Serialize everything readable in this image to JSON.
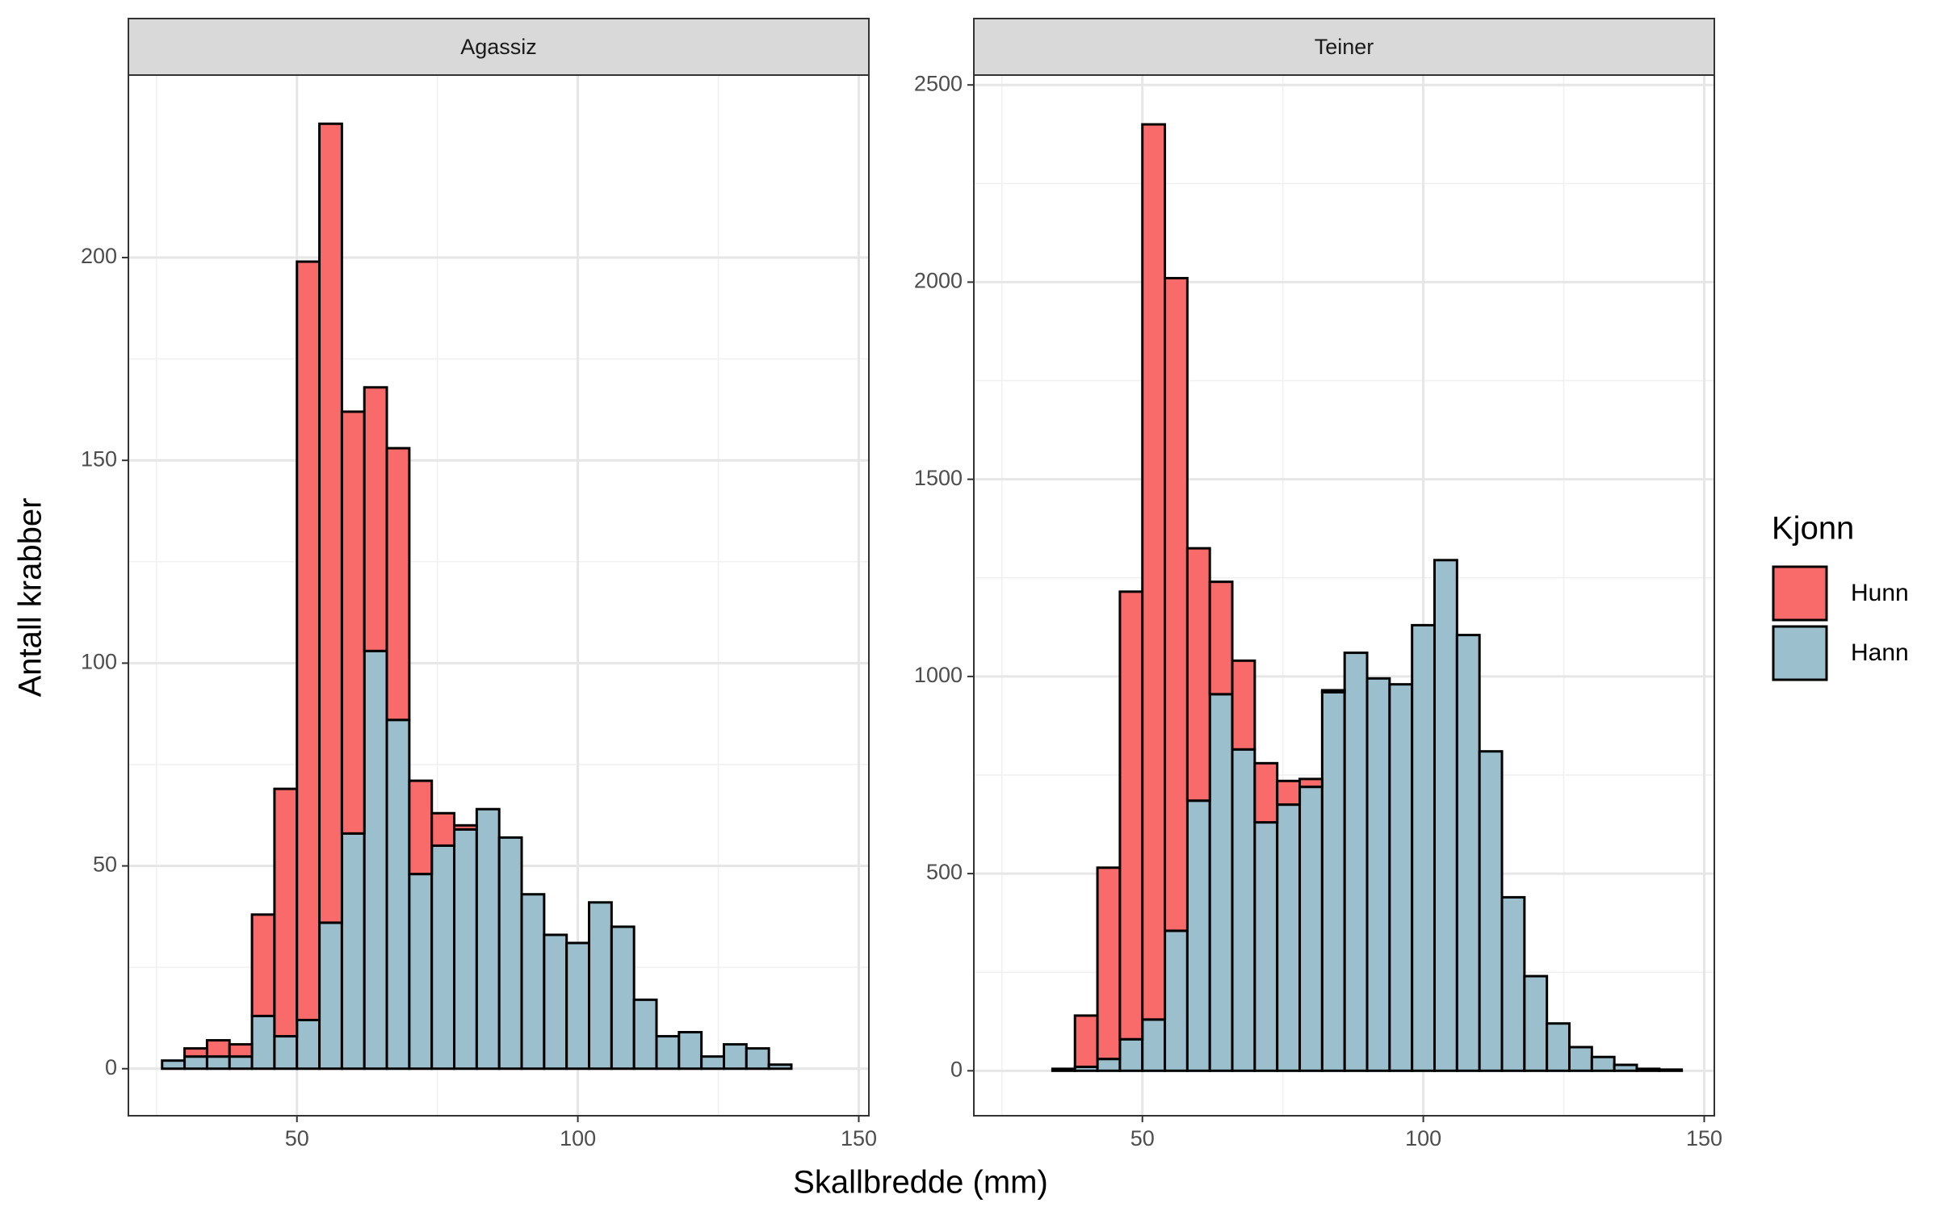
{
  "xlabel": "Skallbredde (mm)",
  "ylabel": "Antall krabber",
  "legend_title": "Kjonn",
  "chart_data": [
    {
      "type": "histogram",
      "title": "Agassiz",
      "bins": [
        26,
        30,
        34,
        38,
        42,
        46,
        50,
        54,
        58,
        62,
        66,
        70,
        74,
        78,
        82,
        86,
        90,
        94,
        98,
        102,
        106,
        110,
        114,
        118,
        122,
        126,
        130,
        134,
        138,
        142,
        146
      ],
      "series": [
        {
          "name": "Hunn",
          "color": "#f96b6b",
          "values": [
            0,
            2,
            4,
            3,
            25,
            61,
            187,
            197,
            104,
            65,
            67,
            23,
            8,
            1,
            0,
            0,
            0,
            0,
            0,
            0,
            0,
            0,
            0,
            0,
            0,
            0,
            0,
            0,
            0,
            0
          ]
        },
        {
          "name": "Hann",
          "color": "#9bbfcc",
          "values": [
            2,
            3,
            3,
            3,
            13,
            8,
            12,
            36,
            58,
            103,
            86,
            48,
            55,
            59,
            64,
            57,
            43,
            33,
            31,
            41,
            35,
            17,
            8,
            9,
            3,
            6,
            5,
            1,
            0,
            0
          ]
        }
      ],
      "xlim": [
        20,
        151.8
      ],
      "xticks": [
        50,
        100,
        150
      ],
      "ylim": [
        -11.6,
        245
      ],
      "yticks": [
        0,
        50,
        100,
        150,
        200
      ],
      "grid": true
    },
    {
      "type": "histogram",
      "title": "Teiner",
      "bins": [
        26,
        30,
        34,
        38,
        42,
        46,
        50,
        54,
        58,
        62,
        66,
        70,
        74,
        78,
        82,
        86,
        90,
        94,
        98,
        102,
        106,
        110,
        114,
        118,
        122,
        126,
        130,
        134,
        138,
        142,
        146
      ],
      "series": [
        {
          "color": "#f96b6b",
          "values": [
            0,
            0,
            2,
            130,
            485,
            1135,
            2270,
            1655,
            640,
            285,
            225,
            150,
            60,
            20,
            5,
            0,
            0,
            0,
            0,
            0,
            0,
            0,
            0,
            0,
            0,
            0,
            0,
            0,
            0,
            0
          ]
        },
        {
          "color": "#9bbfcc",
          "values": [
            0,
            0,
            3,
            10,
            30,
            80,
            130,
            355,
            685,
            955,
            815,
            630,
            675,
            720,
            960,
            1060,
            995,
            980,
            1130,
            1295,
            1105,
            810,
            440,
            240,
            120,
            60,
            35,
            15,
            5,
            3
          ]
        }
      ],
      "xlim": [
        20,
        151.8
      ],
      "xticks": [
        50,
        100,
        150
      ],
      "ylim": [
        -114,
        2525
      ],
      "yticks": [
        0,
        500,
        1000,
        1500,
        2000,
        2500
      ],
      "grid": true
    }
  ]
}
